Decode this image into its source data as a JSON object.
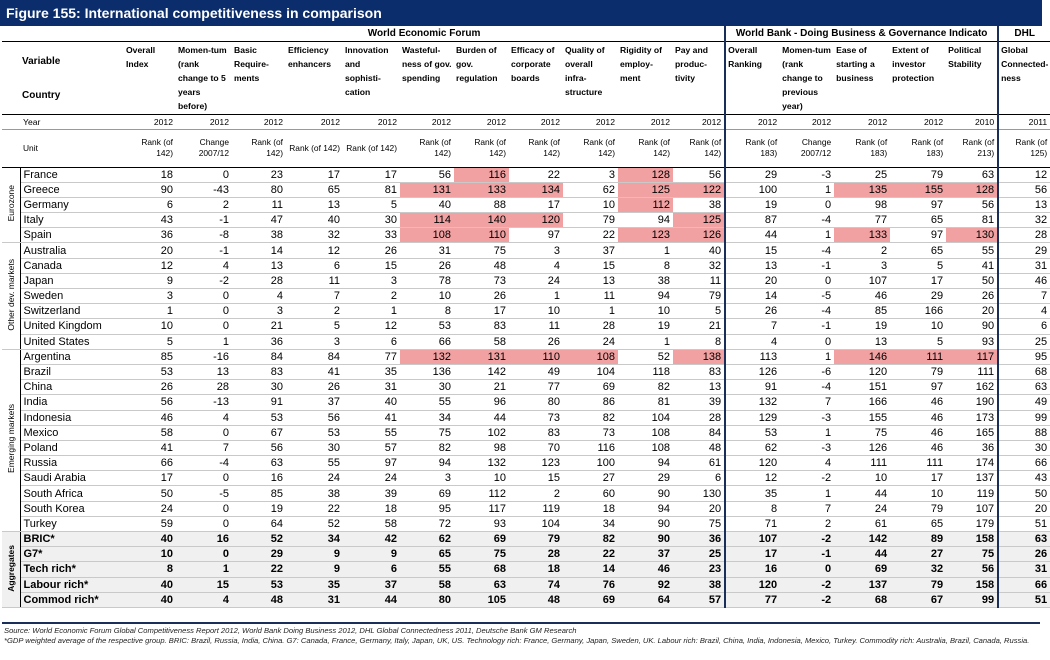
{
  "figure_title": "Figure 155: International competitiveness in comparison",
  "bands": {
    "wef": "World Economic Forum",
    "wb": "World Bank - Doing Business & Governance Indicato",
    "dhl": "DHL"
  },
  "header": {
    "variable": "Variable",
    "country": "Country",
    "year_label": "Year",
    "unit_label": "Unit",
    "columns": [
      {
        "name": "Overall Index",
        "year": "2012",
        "unit": "Rank (of 142)"
      },
      {
        "name": "Momen-tum (rank change to 5 years before)",
        "year": "2012",
        "unit": "Change 2007/12"
      },
      {
        "name": "Basic Require-ments",
        "year": "2012",
        "unit": "Rank (of 142)"
      },
      {
        "name": "Efficiency enhancers",
        "year": "2012",
        "unit": "Rank (of 142)"
      },
      {
        "name": "Innovation and sophisti-cation",
        "year": "2012",
        "unit": "Rank (of 142)"
      },
      {
        "name": "Wasteful-ness of gov. spending",
        "year": "2012",
        "unit": "Rank (of 142)"
      },
      {
        "name": "Burden of gov. regulation",
        "year": "2012",
        "unit": "Rank (of 142)"
      },
      {
        "name": "Efficacy of corporate boards",
        "year": "2012",
        "unit": "Rank (of 142)"
      },
      {
        "name": "Quality of overall infra-structure",
        "year": "2012",
        "unit": "Rank (of 142)"
      },
      {
        "name": "Rigidity of employ-ment",
        "year": "2012",
        "unit": "Rank (of 142)"
      },
      {
        "name": "Pay and produc-tivity",
        "year": "2012",
        "unit": "Rank (of 142)"
      },
      {
        "name": "Overall Ranking",
        "year": "2012",
        "unit": "Rank (of 183)"
      },
      {
        "name": "Momen-tum (rank change to previous year)",
        "year": "2012",
        "unit": "Change 2007/12"
      },
      {
        "name": "Ease of starting a business",
        "year": "2012",
        "unit": "Rank (of 183)"
      },
      {
        "name": "Extent of investor protection",
        "year": "2012",
        "unit": "Rank (of 183)"
      },
      {
        "name": "Political Stability",
        "year": "2010",
        "unit": "Rank (of 213)"
      },
      {
        "name": "Global Connected-ness",
        "year": "2011",
        "unit": "Rank (of 125)"
      }
    ]
  },
  "groups": [
    {
      "label": "Eurozone",
      "rows": [
        {
          "country": "France",
          "values": [
            "18",
            "0",
            "23",
            "17",
            "17",
            "56",
            "116",
            "22",
            "3",
            "128",
            "56",
            "29",
            "-3",
            "25",
            "79",
            "63",
            "12"
          ],
          "hl": [
            6,
            9
          ]
        },
        {
          "country": "Greece",
          "values": [
            "90",
            "-43",
            "80",
            "65",
            "81",
            "131",
            "133",
            "134",
            "62",
            "125",
            "122",
            "100",
            "1",
            "135",
            "155",
            "128",
            "56"
          ],
          "hl": [
            5,
            6,
            7,
            9,
            10,
            13,
            14,
            15
          ]
        },
        {
          "country": "Germany",
          "values": [
            "6",
            "2",
            "11",
            "13",
            "5",
            "40",
            "88",
            "17",
            "10",
            "112",
            "38",
            "19",
            "0",
            "98",
            "97",
            "56",
            "13"
          ],
          "hl": [
            9
          ]
        },
        {
          "country": "Italy",
          "values": [
            "43",
            "-1",
            "47",
            "40",
            "30",
            "114",
            "140",
            "120",
            "79",
            "94",
            "125",
            "87",
            "-4",
            "77",
            "65",
            "81",
            "32"
          ],
          "hl": [
            5,
            6,
            7,
            10
          ]
        },
        {
          "country": "Spain",
          "values": [
            "36",
            "-8",
            "38",
            "32",
            "33",
            "108",
            "110",
            "97",
            "22",
            "123",
            "126",
            "44",
            "1",
            "133",
            "97",
            "130",
            "28"
          ],
          "hl": [
            5,
            6,
            9,
            10,
            13,
            15
          ]
        }
      ]
    },
    {
      "label": "Other dev. markets",
      "rows": [
        {
          "country": "Australia",
          "values": [
            "20",
            "-1",
            "14",
            "12",
            "26",
            "31",
            "75",
            "3",
            "37",
            "1",
            "40",
            "15",
            "-4",
            "2",
            "65",
            "55",
            "29"
          ],
          "hl": []
        },
        {
          "country": "Canada",
          "values": [
            "12",
            "4",
            "13",
            "6",
            "15",
            "26",
            "48",
            "4",
            "15",
            "8",
            "32",
            "13",
            "-1",
            "3",
            "5",
            "41",
            "31"
          ],
          "hl": []
        },
        {
          "country": "Japan",
          "values": [
            "9",
            "-2",
            "28",
            "11",
            "3",
            "78",
            "73",
            "24",
            "13",
            "38",
            "11",
            "20",
            "0",
            "107",
            "17",
            "50",
            "46"
          ],
          "hl": []
        },
        {
          "country": "Sweden",
          "values": [
            "3",
            "0",
            "4",
            "7",
            "2",
            "10",
            "26",
            "1",
            "11",
            "94",
            "79",
            "14",
            "-5",
            "46",
            "29",
            "26",
            "7"
          ],
          "hl": []
        },
        {
          "country": "Switzerland",
          "values": [
            "1",
            "0",
            "3",
            "2",
            "1",
            "8",
            "17",
            "10",
            "1",
            "10",
            "5",
            "26",
            "-4",
            "85",
            "166",
            "20",
            "4"
          ],
          "hl": []
        },
        {
          "country": "United Kingdom",
          "values": [
            "10",
            "0",
            "21",
            "5",
            "12",
            "53",
            "83",
            "11",
            "28",
            "19",
            "21",
            "7",
            "-1",
            "19",
            "10",
            "90",
            "6"
          ],
          "hl": []
        },
        {
          "country": "United States",
          "values": [
            "5",
            "1",
            "36",
            "3",
            "6",
            "66",
            "58",
            "26",
            "24",
            "1",
            "8",
            "4",
            "0",
            "13",
            "5",
            "93",
            "25"
          ],
          "hl": []
        }
      ]
    },
    {
      "label": "Emerging markets",
      "rows": [
        {
          "country": "Argentina",
          "values": [
            "85",
            "-16",
            "84",
            "84",
            "77",
            "132",
            "131",
            "110",
            "108",
            "52",
            "138",
            "113",
            "1",
            "146",
            "111",
            "117",
            "95"
          ],
          "hl": [
            5,
            6,
            7,
            8,
            10,
            13,
            14,
            15
          ]
        },
        {
          "country": "Brazil",
          "values": [
            "53",
            "13",
            "83",
            "41",
            "35",
            "136",
            "142",
            "49",
            "104",
            "118",
            "83",
            "126",
            "-6",
            "120",
            "79",
            "111",
            "68"
          ],
          "hl": []
        },
        {
          "country": "China",
          "values": [
            "26",
            "28",
            "30",
            "26",
            "31",
            "30",
            "21",
            "77",
            "69",
            "82",
            "13",
            "91",
            "-4",
            "151",
            "97",
            "162",
            "63"
          ],
          "hl": []
        },
        {
          "country": "India",
          "values": [
            "56",
            "-13",
            "91",
            "37",
            "40",
            "55",
            "96",
            "80",
            "86",
            "81",
            "39",
            "132",
            "7",
            "166",
            "46",
            "190",
            "49"
          ],
          "hl": []
        },
        {
          "country": "Indonesia",
          "values": [
            "46",
            "4",
            "53",
            "56",
            "41",
            "34",
            "44",
            "73",
            "82",
            "104",
            "28",
            "129",
            "-3",
            "155",
            "46",
            "173",
            "99"
          ],
          "hl": []
        },
        {
          "country": "Mexico",
          "values": [
            "58",
            "0",
            "67",
            "53",
            "55",
            "75",
            "102",
            "83",
            "73",
            "108",
            "84",
            "53",
            "1",
            "75",
            "46",
            "165",
            "88"
          ],
          "hl": []
        },
        {
          "country": "Poland",
          "values": [
            "41",
            "7",
            "56",
            "30",
            "57",
            "82",
            "98",
            "70",
            "116",
            "108",
            "48",
            "62",
            "-3",
            "126",
            "46",
            "36",
            "30"
          ],
          "hl": []
        },
        {
          "country": "Russia",
          "values": [
            "66",
            "-4",
            "63",
            "55",
            "97",
            "94",
            "132",
            "123",
            "100",
            "94",
            "61",
            "120",
            "4",
            "111",
            "111",
            "174",
            "66"
          ],
          "hl": []
        },
        {
          "country": "Saudi Arabia",
          "values": [
            "17",
            "0",
            "16",
            "24",
            "24",
            "3",
            "10",
            "15",
            "27",
            "29",
            "6",
            "12",
            "-2",
            "10",
            "17",
            "137",
            "43"
          ],
          "hl": []
        },
        {
          "country": "South Africa",
          "values": [
            "50",
            "-5",
            "85",
            "38",
            "39",
            "69",
            "112",
            "2",
            "60",
            "90",
            "130",
            "35",
            "1",
            "44",
            "10",
            "119",
            "50"
          ],
          "hl": []
        },
        {
          "country": "South Korea",
          "values": [
            "24",
            "0",
            "19",
            "22",
            "18",
            "95",
            "117",
            "119",
            "18",
            "94",
            "20",
            "8",
            "7",
            "24",
            "79",
            "107",
            "20"
          ],
          "hl": []
        },
        {
          "country": "Turkey",
          "values": [
            "59",
            "0",
            "64",
            "52",
            "58",
            "72",
            "93",
            "104",
            "34",
            "90",
            "75",
            "71",
            "2",
            "61",
            "65",
            "179",
            "51"
          ],
          "hl": []
        }
      ]
    },
    {
      "label": "Aggregates",
      "agg": true,
      "rows": [
        {
          "country": "BRIC*",
          "values": [
            "40",
            "16",
            "52",
            "34",
            "42",
            "62",
            "69",
            "79",
            "82",
            "90",
            "36",
            "107",
            "-2",
            "142",
            "89",
            "158",
            "63"
          ],
          "hl": []
        },
        {
          "country": "G7*",
          "values": [
            "10",
            "0",
            "29",
            "9",
            "9",
            "65",
            "75",
            "28",
            "22",
            "37",
            "25",
            "17",
            "-1",
            "44",
            "27",
            "75",
            "26"
          ],
          "hl": []
        },
        {
          "country": "Tech rich*",
          "values": [
            "8",
            "1",
            "22",
            "9",
            "6",
            "55",
            "68",
            "18",
            "14",
            "46",
            "23",
            "16",
            "0",
            "69",
            "32",
            "56",
            "31"
          ],
          "hl": []
        },
        {
          "country": "Labour rich*",
          "values": [
            "40",
            "15",
            "53",
            "35",
            "37",
            "58",
            "63",
            "74",
            "76",
            "92",
            "38",
            "120",
            "-2",
            "137",
            "79",
            "158",
            "66"
          ],
          "hl": []
        },
        {
          "country": "Commod rich*",
          "values": [
            "40",
            "4",
            "48",
            "31",
            "44",
            "80",
            "105",
            "48",
            "69",
            "64",
            "57",
            "77",
            "-2",
            "68",
            "67",
            "99",
            "51"
          ],
          "hl": []
        }
      ]
    }
  ],
  "footnotes": {
    "source": "Source: World Economic Forum Global Competitiveness Report 2012, World Bank Doing Business 2012, DHL Global Connectedness 2011, Deutsche Bank GM Research",
    "note": "*GDP weighted average of the respective group. BRIC: Brazil, Russia, India, China. G7: Canada, France, Germany, Italy, Japan, UK, US. Technology rich: France, Germany, Japan, Sweden, UK. Labour rich: Brazil, China, India, Indonesia, Mexico, Turkey. Commodity rich: Australia, Brazil, Canada, Russia."
  },
  "colors": {
    "title_bg": "#0b2d6b",
    "highlight": "#f1a1a1",
    "rule": "#1a2e5a"
  }
}
